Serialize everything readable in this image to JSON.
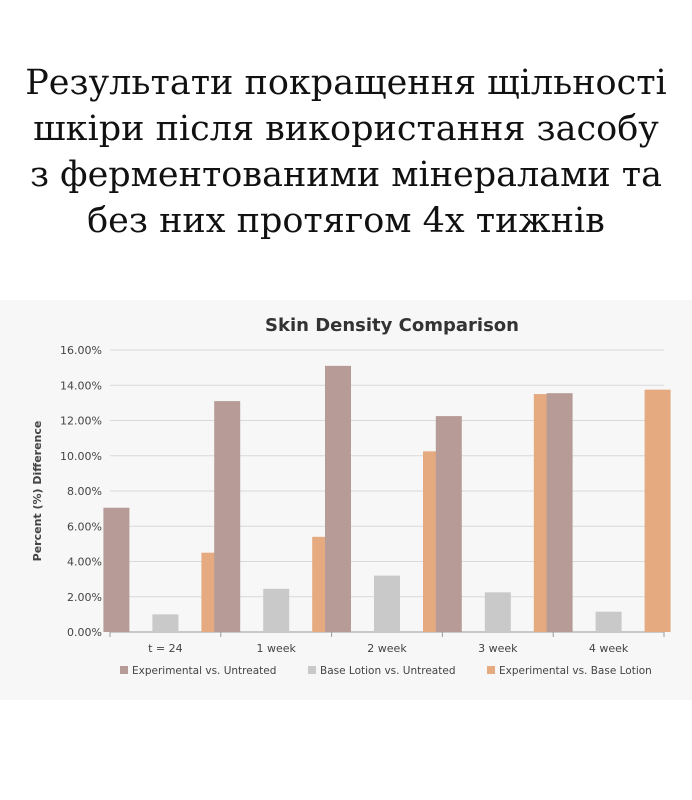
{
  "heading": "Результати покращення щільності шкіри після використання засобу з ферментованими мінералами та без них протягом 4х тижнів",
  "chart_data": {
    "type": "bar",
    "title": "Skin Density Comparison",
    "xlabel": "",
    "ylabel": "Percent (%) Difference",
    "categories": [
      "t = 24",
      "1 week",
      "2 week",
      "3 week",
      "4 week"
    ],
    "series": [
      {
        "name": "Experimental vs. Untreated",
        "color": "#b79b97",
        "values": [
          7.05,
          13.1,
          15.1,
          12.25,
          13.55
        ]
      },
      {
        "name": "Base Lotion vs. Untreated",
        "color": "#c9c9c9",
        "values": [
          1.0,
          2.45,
          3.2,
          2.25,
          1.15
        ]
      },
      {
        "name": "Experimental vs. Base Lotion",
        "color": "#e6aa80",
        "values": [
          4.5,
          5.4,
          10.25,
          13.5,
          13.75
        ]
      }
    ],
    "ylim": [
      0,
      16
    ],
    "yticks": [
      "0.00%",
      "2.00%",
      "4.00%",
      "6.00%",
      "8.00%",
      "10.00%",
      "12.00%",
      "14.00%",
      "16.00%"
    ],
    "grid": true,
    "legend": "bottom",
    "colors": {
      "grid": "#d9d9d9",
      "axis": "#9a9a9a",
      "text": "#444444",
      "title": "#333333",
      "background": "#f7f7f7"
    }
  }
}
